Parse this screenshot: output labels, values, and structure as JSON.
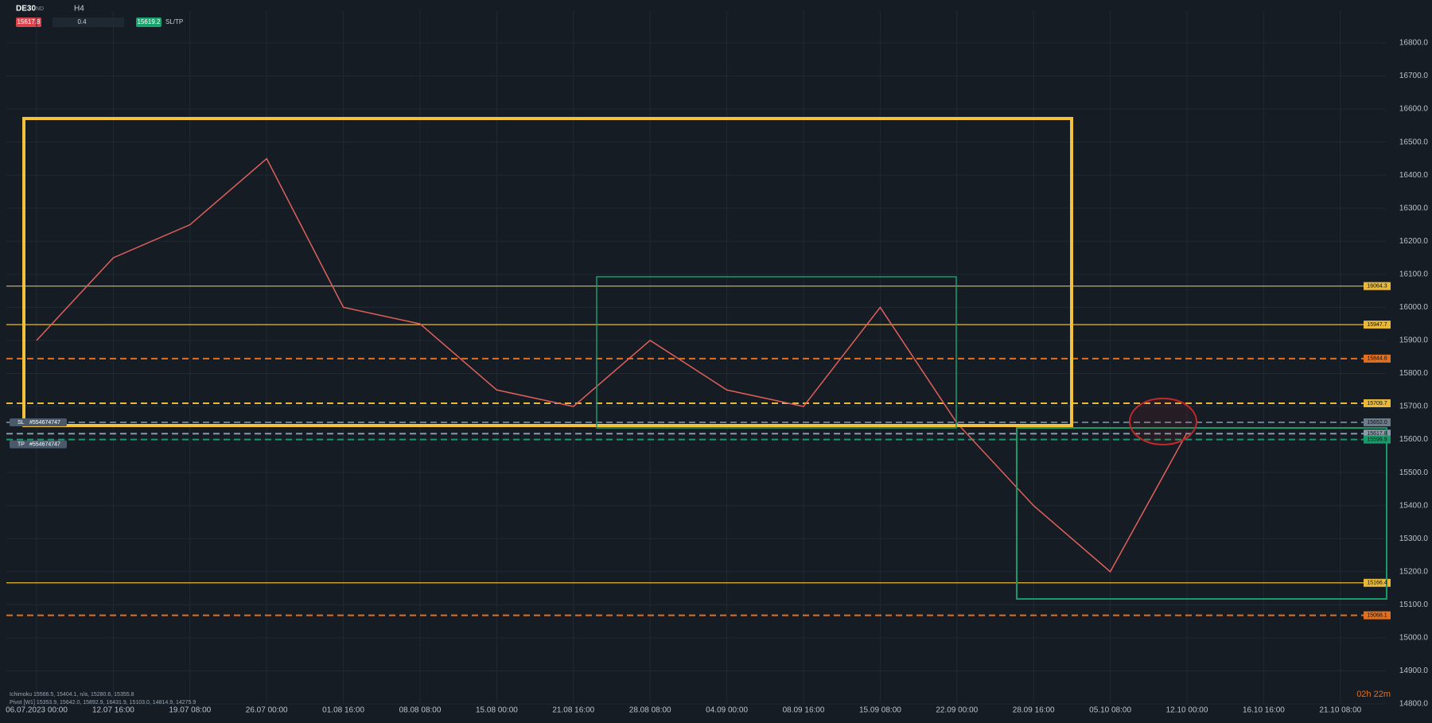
{
  "toolbar": {
    "symbol": "DE30",
    "market": "IND",
    "timeframe": "H4",
    "sell": "15617.8",
    "volume": "0.4",
    "buy": "15619.2",
    "sltp": "SL/TP"
  },
  "chart_data": {
    "type": "line",
    "categories": [
      "06.07.2023 00:00",
      "12.07 16:00",
      "19.07 08:00",
      "26.07 00:00",
      "01.08 16:00",
      "08.08 08:00",
      "15.08 00:00",
      "21.08 16:00",
      "28.08 08:00",
      "04.09 00:00",
      "08.09 16:00",
      "15.09 08:00",
      "22.09 00:00",
      "28.09 16:00",
      "05.10 08:00",
      "12.10 00:00",
      "16.10 16:00",
      "21.10 08:00"
    ],
    "series": [
      {
        "color": "#e0605c",
        "values": [
          15900,
          16150,
          16250,
          16450,
          16000,
          15950,
          15750,
          15700,
          15900,
          15750,
          15700,
          16000,
          15650,
          15400,
          15200,
          15620,
          null,
          null
        ]
      }
    ],
    "ylim": [
      14800,
      16800
    ],
    "yticks": [
      {
        "value": 14800,
        "label": "14800.0"
      },
      {
        "value": 14900,
        "label": "14900.0"
      },
      {
        "value": 15000,
        "label": "15000.0"
      },
      {
        "value": 15100,
        "label": "15100.0"
      },
      {
        "value": 15200,
        "label": "15200.0"
      },
      {
        "value": 15300,
        "label": "15300.0"
      },
      {
        "value": 15400,
        "label": "15400.0"
      },
      {
        "value": 15500,
        "label": "15500.0"
      },
      {
        "value": 15600,
        "label": "15600.0"
      },
      {
        "value": 15700,
        "label": "15700.0"
      },
      {
        "value": 15800,
        "label": "15800.0"
      },
      {
        "value": 15900,
        "label": "15900.0"
      },
      {
        "value": 16000,
        "label": "16000.0"
      },
      {
        "value": 16100,
        "label": "16100.0"
      },
      {
        "value": 16200,
        "label": "16200.0"
      },
      {
        "value": 16300,
        "label": "16300.0"
      },
      {
        "value": 16400,
        "label": "16400.0"
      },
      {
        "value": 16500,
        "label": "16500.0"
      },
      {
        "value": 16600,
        "label": "16600.0"
      },
      {
        "value": 16700,
        "label": "16700.0"
      },
      {
        "value": 16800,
        "label": "16800.0"
      }
    ],
    "grid": true,
    "levels": [
      {
        "value": 16064.3,
        "label": "16064.3",
        "color": "#e8b83a",
        "dash": false
      },
      {
        "value": 15947.7,
        "label": "15947.7",
        "color": "#e8b83a",
        "dash": false
      },
      {
        "value": 15844.8,
        "label": "15844.8",
        "color": "#e07020",
        "dash": true
      },
      {
        "value": 15709.7,
        "label": "15709.7",
        "color": "#e8b83a",
        "dash": true
      },
      {
        "value": 15652,
        "label": "15652.0",
        "color": "#6a7c8c",
        "dash": true
      },
      {
        "value": 15617.8,
        "label": "15617.8",
        "color": "#8a9aa8",
        "dash": true
      },
      {
        "value": 15599.9,
        "label": "15599.9",
        "color": "#1a9a6a",
        "dash": true
      },
      {
        "value": 15166.4,
        "label": "15166.4",
        "color": "#e8b83a",
        "dash": false
      },
      {
        "value": 15068.1,
        "label": "15068.1",
        "color": "#e07020",
        "dash": true
      }
    ],
    "orders": [
      {
        "type": "SL",
        "id": "#554674747"
      },
      {
        "type": "TP",
        "id": "#554674747"
      }
    ],
    "indicators": [
      "Ichimoku 15566.5, 15404.1, n/a, 15280.6, 15355.8",
      "Pivot [W1] 15353.9, 15642.0, 15892.9, 16431.9, 15103.0, 14814.9, 14275.9"
    ],
    "timer": "02h 22m"
  }
}
